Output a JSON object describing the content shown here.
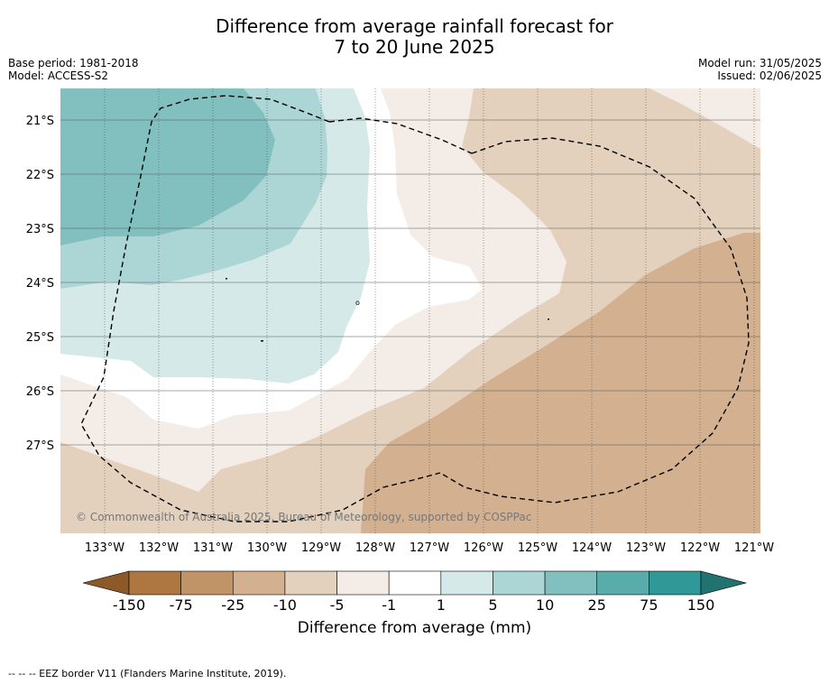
{
  "title": {
    "line1": "Difference from average rainfall forecast for",
    "line2": "7 to 20 June 2025"
  },
  "meta": {
    "base_period": "Base period: 1981-2018",
    "model": "Model: ACCESS-S2",
    "model_run": "Model run: 31/05/2025",
    "issued": "Issued: 02/06/2025"
  },
  "map": {
    "lat_labels": [
      "21°S",
      "22°S",
      "23°S",
      "24°S",
      "25°S",
      "26°S",
      "27°S"
    ],
    "lon_labels": [
      "133°W",
      "132°W",
      "131°W",
      "130°W",
      "129°W",
      "128°W",
      "127°W",
      "126°W",
      "125°W",
      "124°W",
      "123°W",
      "122°W",
      "121°W"
    ],
    "copyright": "© Commonwealth of Australia 2025, Bureau of Meteorology, supported by COSPPac",
    "island_labels": [
      "o"
    ]
  },
  "colorbar": {
    "title": "Difference from average (mm)",
    "tick_labels": [
      "-150",
      "-75",
      "-25",
      "-10",
      "-5",
      "-1",
      "1",
      "5",
      "10",
      "25",
      "75",
      "150"
    ],
    "colors": {
      "under": "#8c5a26",
      "bins": [
        "#ae7742",
        "#c19467",
        "#d3b090",
        "#e3d1bd",
        "#f4ede7",
        "#ffffff",
        "#d4e9e8",
        "#acd6d5",
        "#82c0bf",
        "#5aacab",
        "#309997"
      ],
      "over": "#217270"
    }
  },
  "footnote": "--  --  -- EEZ border V11 (Flanders Marine Institute, 2019)."
}
